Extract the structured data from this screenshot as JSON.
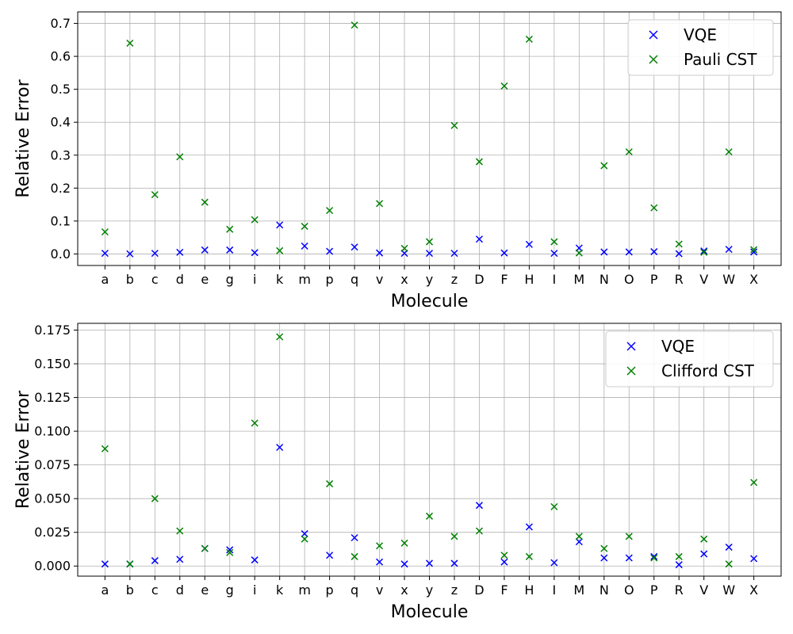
{
  "chart_data": [
    {
      "type": "scatter",
      "xlabel": "Molecule",
      "ylabel": "Relative Error",
      "ylim": [
        -0.035,
        0.735
      ],
      "yticks": [
        "0.0",
        "0.1",
        "0.2",
        "0.3",
        "0.4",
        "0.5",
        "0.6",
        "0.7"
      ],
      "ytick_values": [
        0.0,
        0.1,
        0.2,
        0.3,
        0.4,
        0.5,
        0.6,
        0.7
      ],
      "grid": true,
      "legend_position": "top-right",
      "categories": [
        "a",
        "b",
        "c",
        "d",
        "e",
        "g",
        "i",
        "k",
        "m",
        "p",
        "q",
        "v",
        "x",
        "y",
        "z",
        "D",
        "F",
        "H",
        "I",
        "M",
        "N",
        "O",
        "P",
        "R",
        "V",
        "W",
        "X"
      ],
      "series": [
        {
          "name": "VQE",
          "color": "#0000ff",
          "marker": "x",
          "values": [
            0.002,
            0.0005,
            0.002,
            0.005,
            0.012,
            0.012,
            0.004,
            0.088,
            0.024,
            0.008,
            0.021,
            0.003,
            0.002,
            0.002,
            0.002,
            0.045,
            0.003,
            0.029,
            0.002,
            0.018,
            0.006,
            0.006,
            0.007,
            0.001,
            0.009,
            0.014,
            0.006
          ]
        },
        {
          "name": "Pauli CST",
          "color": "#008000",
          "marker": "x",
          "values": [
            0.067,
            0.64,
            0.18,
            0.295,
            0.157,
            0.075,
            0.104,
            0.01,
            0.084,
            0.132,
            0.695,
            0.153,
            0.017,
            0.037,
            0.39,
            0.28,
            0.51,
            0.652,
            0.037,
            0.003,
            0.268,
            0.31,
            0.14,
            0.03,
            0.005,
            0.31,
            0.013
          ]
        }
      ]
    },
    {
      "type": "scatter",
      "xlabel": "Molecule",
      "ylabel": "Relative Error",
      "ylim": [
        -0.0075,
        0.18
      ],
      "yticks": [
        "0.000",
        "0.025",
        "0.050",
        "0.075",
        "0.100",
        "0.125",
        "0.150",
        "0.175"
      ],
      "ytick_values": [
        0.0,
        0.025,
        0.05,
        0.075,
        0.1,
        0.125,
        0.15,
        0.175
      ],
      "grid": true,
      "legend_position": "top-right",
      "categories": [
        "a",
        "b",
        "c",
        "d",
        "e",
        "g",
        "i",
        "k",
        "m",
        "p",
        "q",
        "v",
        "x",
        "y",
        "z",
        "D",
        "F",
        "H",
        "I",
        "M",
        "N",
        "O",
        "P",
        "R",
        "V",
        "W",
        "X"
      ],
      "series": [
        {
          "name": "VQE",
          "color": "#0000ff",
          "marker": "x",
          "values": [
            0.0015,
            0.0015,
            0.004,
            0.005,
            0.013,
            0.012,
            0.0045,
            0.088,
            0.024,
            0.008,
            0.021,
            0.003,
            0.0015,
            0.002,
            0.002,
            0.045,
            0.003,
            0.029,
            0.0025,
            0.018,
            0.006,
            0.006,
            0.007,
            0.001,
            0.009,
            0.014,
            0.0055
          ]
        },
        {
          "name": "Clifford CST",
          "color": "#008000",
          "marker": "x",
          "values": [
            0.087,
            0.0015,
            0.05,
            0.026,
            0.013,
            0.01,
            0.106,
            0.17,
            0.02,
            0.061,
            0.007,
            0.015,
            0.017,
            0.037,
            0.022,
            0.026,
            0.008,
            0.007,
            0.044,
            0.022,
            0.013,
            0.022,
            0.006,
            0.007,
            0.02,
            0.0015,
            0.062
          ]
        }
      ]
    }
  ]
}
